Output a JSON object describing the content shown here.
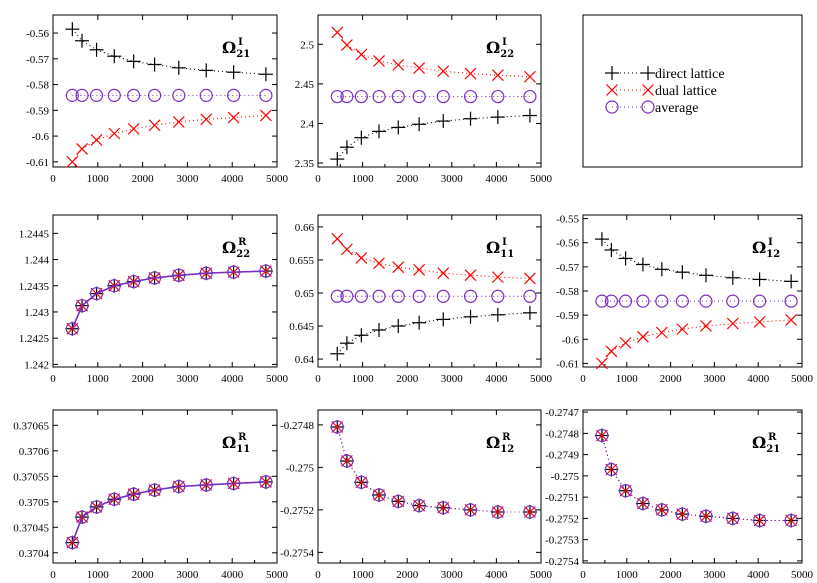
{
  "legend": {
    "items": [
      {
        "label": "direct lattice",
        "marker": "plus",
        "color": "#000000"
      },
      {
        "label": "dual lattice",
        "marker": "cross",
        "color": "#ff0000"
      },
      {
        "label": "average",
        "marker": "circle",
        "color": "#7b2fbe"
      }
    ]
  },
  "chart_data": [
    {
      "type": "line",
      "title": "Ω",
      "title_sub": "21",
      "title_sup": "I",
      "xlim": [
        0,
        5000
      ],
      "ylim": [
        -0.612,
        -0.553
      ],
      "xticks": [
        0,
        1000,
        2000,
        3000,
        4000,
        5000
      ],
      "yticks": [
        -0.61,
        -0.6,
        -0.59,
        -0.58,
        -0.57,
        -0.56
      ],
      "ytick_labels": [
        "-0.61",
        "-0.6",
        "-0.59",
        "-0.58",
        "-0.57",
        "-0.56"
      ],
      "x": [
        432,
        648,
        972,
        1368,
        1800,
        2268,
        2808,
        3420,
        4032,
        4752
      ],
      "series": [
        {
          "name": "direct lattice",
          "marker": "plus",
          "values": [
            -0.5585,
            -0.563,
            -0.5665,
            -0.569,
            -0.571,
            -0.5722,
            -0.5735,
            -0.5745,
            -0.5752,
            -0.576
          ]
        },
        {
          "name": "dual lattice",
          "marker": "cross",
          "values": [
            -0.61,
            -0.605,
            -0.6015,
            -0.599,
            -0.5972,
            -0.5958,
            -0.5945,
            -0.5935,
            -0.5928,
            -0.592
          ]
        },
        {
          "name": "average",
          "marker": "circle",
          "values": [
            -0.5842,
            -0.5842,
            -0.5842,
            -0.5842,
            -0.5842,
            -0.5842,
            -0.5842,
            -0.5842,
            -0.5842,
            -0.5842
          ]
        }
      ]
    },
    {
      "type": "line",
      "title": "Ω",
      "title_sub": "22",
      "title_sup": "I",
      "xlim": [
        0,
        5000
      ],
      "ylim": [
        2.345,
        2.537
      ],
      "xticks": [
        0,
        1000,
        2000,
        3000,
        4000,
        5000
      ],
      "yticks": [
        2.35,
        2.4,
        2.45,
        2.5
      ],
      "ytick_labels": [
        "2.35",
        "2.4",
        "2.45",
        "2.5"
      ],
      "x": [
        432,
        648,
        972,
        1368,
        1800,
        2268,
        2808,
        3420,
        4032,
        4752
      ],
      "series": [
        {
          "name": "direct lattice",
          "marker": "plus",
          "values": [
            2.355,
            2.37,
            2.382,
            2.39,
            2.395,
            2.399,
            2.403,
            2.406,
            2.408,
            2.41
          ]
        },
        {
          "name": "dual lattice",
          "marker": "cross",
          "values": [
            2.515,
            2.499,
            2.487,
            2.479,
            2.474,
            2.47,
            2.466,
            2.463,
            2.461,
            2.459
          ]
        },
        {
          "name": "average",
          "marker": "circle",
          "values": [
            2.434,
            2.434,
            2.434,
            2.434,
            2.434,
            2.434,
            2.434,
            2.434,
            2.434,
            2.434
          ]
        }
      ]
    },
    {
      "type": "line",
      "title": "Ω",
      "title_sub": "22",
      "title_sup": "R",
      "xlim": [
        0,
        5000
      ],
      "ylim": [
        1.24195,
        1.24485
      ],
      "xticks": [
        0,
        1000,
        2000,
        3000,
        4000,
        5000
      ],
      "yticks": [
        1.242,
        1.2425,
        1.243,
        1.2435,
        1.244,
        1.2445
      ],
      "ytick_labels": [
        "1.242",
        "1.2425",
        "1.243",
        "1.2435",
        "1.244",
        "1.2445"
      ],
      "x": [
        432,
        648,
        972,
        1368,
        1800,
        2268,
        2808,
        3420,
        4032,
        4752
      ],
      "series": [
        {
          "name": "direct lattice",
          "marker": "plus",
          "values": [
            1.24268,
            1.24312,
            1.24335,
            1.2435,
            1.24358,
            1.24365,
            1.2437,
            1.24374,
            1.24376,
            1.24378
          ]
        },
        {
          "name": "dual lattice",
          "marker": "cross",
          "values": [
            1.24268,
            1.24312,
            1.24335,
            1.2435,
            1.24358,
            1.24365,
            1.2437,
            1.24374,
            1.24376,
            1.24378
          ]
        },
        {
          "name": "average",
          "marker": "circle",
          "values": [
            1.24268,
            1.24312,
            1.24335,
            1.2435,
            1.24358,
            1.24365,
            1.2437,
            1.24374,
            1.24376,
            1.24378
          ]
        }
      ]
    },
    {
      "type": "line",
      "title": "Ω",
      "title_sub": "11",
      "title_sup": "I",
      "xlim": [
        0,
        5000
      ],
      "ylim": [
        0.6388,
        0.6618
      ],
      "xticks": [
        0,
        1000,
        2000,
        3000,
        4000,
        5000
      ],
      "yticks": [
        0.64,
        0.645,
        0.65,
        0.655,
        0.66
      ],
      "ytick_labels": [
        "0.64",
        "0.645",
        "0.65",
        "0.655",
        "0.66"
      ],
      "x": [
        432,
        648,
        972,
        1368,
        1800,
        2268,
        2808,
        3420,
        4032,
        4752
      ],
      "series": [
        {
          "name": "direct lattice",
          "marker": "plus",
          "values": [
            0.6408,
            0.6424,
            0.6436,
            0.6444,
            0.645,
            0.6455,
            0.646,
            0.6464,
            0.6467,
            0.647
          ]
        },
        {
          "name": "dual lattice",
          "marker": "cross",
          "values": [
            0.6582,
            0.6566,
            0.6553,
            0.6545,
            0.6539,
            0.6535,
            0.653,
            0.6527,
            0.6524,
            0.6522
          ]
        },
        {
          "name": "average",
          "marker": "circle",
          "values": [
            0.6495,
            0.6495,
            0.6495,
            0.6495,
            0.6495,
            0.6495,
            0.6495,
            0.6495,
            0.6495,
            0.6495
          ]
        }
      ]
    },
    {
      "type": "line",
      "title": "Ω",
      "title_sub": "12",
      "title_sup": "I",
      "xlim": [
        0,
        5000
      ],
      "ylim": [
        -0.6115,
        -0.5485
      ],
      "xticks": [
        0,
        1000,
        2000,
        3000,
        4000,
        5000
      ],
      "yticks": [
        -0.61,
        -0.6,
        -0.59,
        -0.58,
        -0.57,
        -0.56,
        -0.55
      ],
      "ytick_labels": [
        "-0.61",
        "-0.6",
        "-0.59",
        "-0.58",
        "-0.57",
        "-0.56",
        "-0.55"
      ],
      "x": [
        432,
        648,
        972,
        1368,
        1800,
        2268,
        2808,
        3420,
        4032,
        4752
      ],
      "series": [
        {
          "name": "direct lattice",
          "marker": "plus",
          "values": [
            -0.5585,
            -0.563,
            -0.5665,
            -0.569,
            -0.571,
            -0.5722,
            -0.5735,
            -0.5745,
            -0.5752,
            -0.576
          ]
        },
        {
          "name": "dual lattice",
          "marker": "cross",
          "values": [
            -0.61,
            -0.605,
            -0.6015,
            -0.599,
            -0.5972,
            -0.5958,
            -0.5945,
            -0.5935,
            -0.5928,
            -0.592
          ]
        },
        {
          "name": "average",
          "marker": "circle",
          "values": [
            -0.5842,
            -0.5842,
            -0.5842,
            -0.5842,
            -0.5842,
            -0.5842,
            -0.5842,
            -0.5842,
            -0.5842,
            -0.5842
          ]
        }
      ]
    },
    {
      "type": "line",
      "title": "Ω",
      "title_sub": "11",
      "title_sup": "R",
      "xlim": [
        0,
        5000
      ],
      "ylim": [
        0.37038,
        0.37068
      ],
      "xticks": [
        0,
        1000,
        2000,
        3000,
        4000,
        5000
      ],
      "yticks": [
        0.3704,
        0.37045,
        0.3705,
        0.37055,
        0.3706,
        0.37065
      ],
      "ytick_labels": [
        "0.3704",
        "0.37045",
        "0.3705",
        "0.37055",
        "0.3706",
        "0.37065"
      ],
      "x": [
        432,
        648,
        972,
        1368,
        1800,
        2268,
        2808,
        3420,
        4032,
        4752
      ],
      "series": [
        {
          "name": "direct lattice",
          "marker": "plus",
          "values": [
            0.37042,
            0.37047,
            0.37049,
            0.370505,
            0.370515,
            0.370523,
            0.37053,
            0.370533,
            0.370536,
            0.370539
          ]
        },
        {
          "name": "dual lattice",
          "marker": "cross",
          "values": [
            0.37042,
            0.37047,
            0.37049,
            0.370505,
            0.370515,
            0.370523,
            0.37053,
            0.370533,
            0.370536,
            0.370539
          ]
        },
        {
          "name": "average",
          "marker": "circle",
          "values": [
            0.37042,
            0.37047,
            0.37049,
            0.370505,
            0.370515,
            0.370523,
            0.37053,
            0.370533,
            0.370536,
            0.370539
          ]
        }
      ]
    },
    {
      "type": "line",
      "title": "Ω",
      "title_sub": "12",
      "title_sup": "R",
      "xlim": [
        0,
        5000
      ],
      "ylim": [
        -0.27545,
        -0.27473
      ],
      "xticks": [
        0,
        1000,
        2000,
        3000,
        4000,
        5000
      ],
      "yticks": [
        -0.2754,
        -0.2752,
        -0.275,
        -0.2748
      ],
      "ytick_labels": [
        "-0.2754",
        "-0.2752",
        "-0.275",
        "-0.2748"
      ],
      "x": [
        432,
        648,
        972,
        1368,
        1800,
        2268,
        2808,
        3420,
        4032,
        4752
      ],
      "series": [
        {
          "name": "direct lattice",
          "marker": "plus",
          "values": [
            -0.27481,
            -0.27497,
            -0.27507,
            -0.27513,
            -0.27516,
            -0.27518,
            -0.27519,
            -0.2752,
            -0.27521,
            -0.27521
          ]
        },
        {
          "name": "dual lattice",
          "marker": "cross",
          "values": [
            -0.27481,
            -0.27497,
            -0.27507,
            -0.27513,
            -0.27516,
            -0.27518,
            -0.27519,
            -0.2752,
            -0.27521,
            -0.27521
          ]
        },
        {
          "name": "average",
          "marker": "circle",
          "values": [
            -0.27481,
            -0.27497,
            -0.27507,
            -0.27513,
            -0.27516,
            -0.27518,
            -0.27519,
            -0.2752,
            -0.27521,
            -0.27521
          ]
        }
      ]
    },
    {
      "type": "line",
      "title": "Ω",
      "title_sub": "21",
      "title_sup": "R",
      "xlim": [
        0,
        5000
      ],
      "ylim": [
        -0.27541,
        -0.27469
      ],
      "xticks": [
        0,
        1000,
        2000,
        3000,
        4000,
        5000
      ],
      "yticks": [
        -0.2754,
        -0.2753,
        -0.2752,
        -0.2751,
        -0.275,
        -0.2749,
        -0.2748,
        -0.2747
      ],
      "ytick_labels": [
        "-0.2754",
        "-0.2753",
        "-0.2752",
        "-0.2751",
        "-0.275",
        "-0.2749",
        "-0.2748",
        "-0.2747"
      ],
      "x": [
        432,
        648,
        972,
        1368,
        1800,
        2268,
        2808,
        3420,
        4032,
        4752
      ],
      "series": [
        {
          "name": "direct lattice",
          "marker": "plus",
          "values": [
            -0.27481,
            -0.27497,
            -0.27507,
            -0.27513,
            -0.27516,
            -0.27518,
            -0.27519,
            -0.2752,
            -0.27521,
            -0.27521
          ]
        },
        {
          "name": "dual lattice",
          "marker": "cross",
          "values": [
            -0.27481,
            -0.27497,
            -0.27507,
            -0.27513,
            -0.27516,
            -0.27518,
            -0.27519,
            -0.2752,
            -0.27521,
            -0.27521
          ]
        },
        {
          "name": "average",
          "marker": "circle",
          "values": [
            -0.27481,
            -0.27497,
            -0.27507,
            -0.27513,
            -0.27516,
            -0.27518,
            -0.27519,
            -0.2752,
            -0.27521,
            -0.27521
          ]
        }
      ]
    }
  ]
}
